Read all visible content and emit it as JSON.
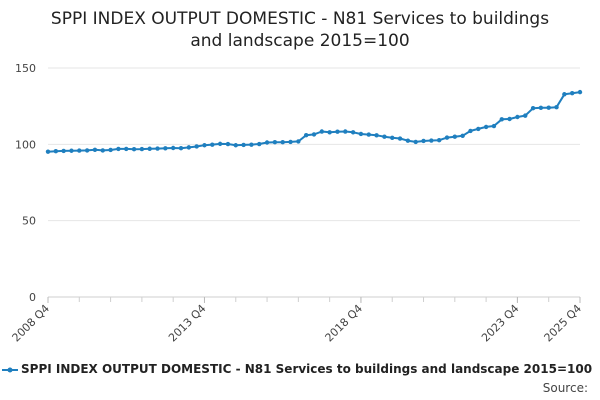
{
  "chart_data": {
    "type": "line",
    "title": "SPPI INDEX OUTPUT DOMESTIC - N81 Services to buildings and landscape 2015=100",
    "title_lines": [
      "SPPI INDEX OUTPUT DOMESTIC - N81 Services to buildings",
      "and landscape 2015=100"
    ],
    "xlabel": "",
    "ylabel": "",
    "ylim": [
      0,
      150
    ],
    "yticks": [
      0,
      50,
      100,
      150
    ],
    "x_tick_labels": [
      "2008 Q4",
      "2013 Q4",
      "2018 Q4",
      "2023 Q4",
      "2025 Q4"
    ],
    "grid": true,
    "legend_position": "bottom",
    "line_color": "#1f7fbf",
    "series": [
      {
        "name": "SPPI INDEX OUTPUT DOMESTIC - N81 Services to buildings and landscape 2015=100",
        "x": [
          "2008 Q4",
          "2009 Q1",
          "2009 Q2",
          "2009 Q3",
          "2009 Q4",
          "2010 Q1",
          "2010 Q2",
          "2010 Q3",
          "2010 Q4",
          "2011 Q1",
          "2011 Q2",
          "2011 Q3",
          "2011 Q4",
          "2012 Q1",
          "2012 Q2",
          "2012 Q3",
          "2012 Q4",
          "2013 Q1",
          "2013 Q2",
          "2013 Q3",
          "2013 Q4",
          "2014 Q1",
          "2014 Q2",
          "2014 Q3",
          "2014 Q4",
          "2015 Q1",
          "2015 Q2",
          "2015 Q3",
          "2015 Q4",
          "2016 Q1",
          "2016 Q2",
          "2016 Q3",
          "2016 Q4",
          "2017 Q1",
          "2017 Q2",
          "2017 Q3",
          "2017 Q4",
          "2018 Q1",
          "2018 Q2",
          "2018 Q3",
          "2018 Q4",
          "2019 Q1",
          "2019 Q2",
          "2019 Q3",
          "2019 Q4",
          "2020 Q1",
          "2020 Q2",
          "2020 Q3",
          "2020 Q4",
          "2021 Q1",
          "2021 Q2",
          "2021 Q3",
          "2021 Q4",
          "2022 Q1",
          "2022 Q2",
          "2022 Q3",
          "2022 Q4",
          "2023 Q1",
          "2023 Q2",
          "2023 Q3",
          "2023 Q4",
          "2024 Q1",
          "2024 Q2",
          "2024 Q3",
          "2024 Q4",
          "2025 Q1",
          "2025 Q2",
          "2025 Q3",
          "2025 Q4"
        ],
        "values": [
          95.2,
          95.5,
          95.7,
          95.8,
          95.9,
          96.0,
          96.4,
          96.0,
          96.3,
          97.0,
          97.0,
          96.8,
          96.9,
          97.1,
          97.2,
          97.4,
          97.6,
          97.5,
          98.0,
          98.6,
          99.4,
          99.8,
          100.3,
          100.2,
          99.4,
          99.6,
          99.8,
          100.2,
          101.2,
          101.4,
          101.4,
          101.6,
          101.9,
          106.0,
          106.5,
          108.4,
          107.9,
          108.3,
          108.4,
          107.9,
          106.8,
          106.4,
          105.9,
          105.0,
          104.3,
          103.8,
          102.4,
          101.6,
          102.2,
          102.5,
          102.7,
          104.4,
          105.0,
          105.6,
          108.8,
          110.1,
          111.4,
          112.0,
          116.4,
          116.6,
          117.9,
          118.8,
          123.7,
          123.9,
          124.0,
          124.3,
          132.8,
          133.5,
          134.2
        ]
      }
    ]
  },
  "legend": {
    "label": "SPPI INDEX OUTPUT DOMESTIC - N81 Services to buildings and landscape 2015=100"
  },
  "footer": {
    "source_label": "Source:"
  }
}
